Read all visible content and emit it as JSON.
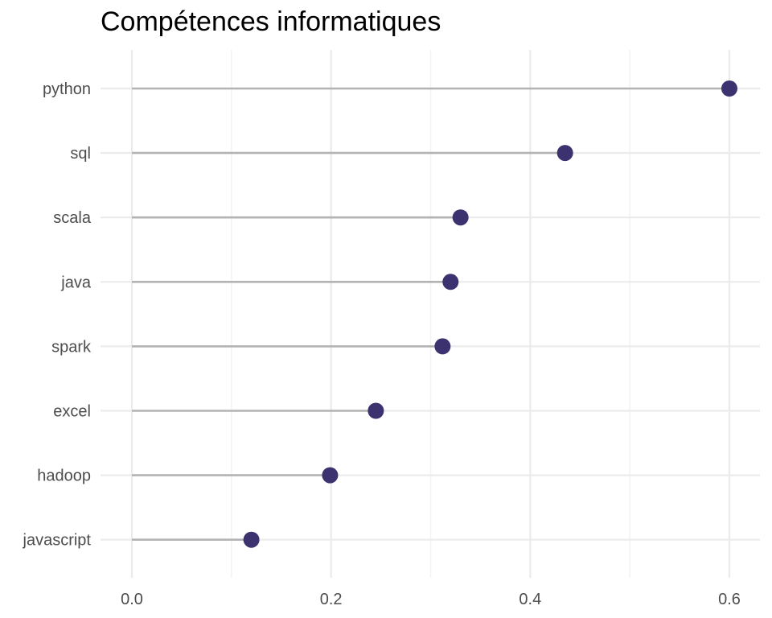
{
  "chart_data": {
    "type": "lollipop",
    "title": "Compétences informatiques",
    "xlabel": "",
    "ylabel": "",
    "xlim": [
      0,
      0.6
    ],
    "x_ticks": [
      0.0,
      0.2,
      0.4,
      0.6
    ],
    "x_tick_labels": [
      "0.0",
      "0.2",
      "0.4",
      "0.6"
    ],
    "categories": [
      "python",
      "sql",
      "scala",
      "java",
      "spark",
      "excel",
      "hadoop",
      "javascript"
    ],
    "values": [
      0.6,
      0.435,
      0.33,
      0.32,
      0.312,
      0.245,
      0.199,
      0.12
    ],
    "grid": true,
    "legend": "none",
    "colors": {
      "point": "#3b326f",
      "stem": "#b3b3b3",
      "grid_major": "#ebebeb",
      "grid_minor": "#f3f3f3",
      "text": "#4d4d4d",
      "title": "#000000"
    }
  }
}
